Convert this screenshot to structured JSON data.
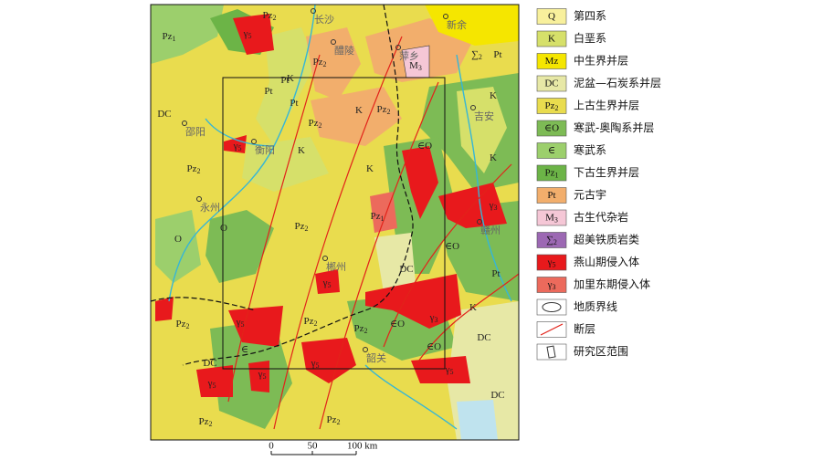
{
  "legend": [
    {
      "symbol": "Q",
      "label": "第四系",
      "color": "#f8f09c"
    },
    {
      "symbol": "K",
      "label": "白垩系",
      "color": "#d6e06a"
    },
    {
      "symbol": "Mz",
      "label": "中生界并层",
      "color": "#f5e600"
    },
    {
      "symbol": "DC",
      "label": "泥盆—石炭系并层",
      "color": "#e7e8a6"
    },
    {
      "symbol": "Pz",
      "sub": "2",
      "label": "上古生界并层",
      "color": "#e9dc4e"
    },
    {
      "symbol": "∈O",
      "label": "寒武-奥陶系并层",
      "color": "#7dbb55"
    },
    {
      "symbol": "∈",
      "label": "寒武系",
      "color": "#9ccf6c"
    },
    {
      "symbol": "Pz",
      "sub": "1",
      "label": "下古生界并层",
      "color": "#6cb447"
    },
    {
      "symbol": "Pt",
      "label": "元古宇",
      "color": "#f2ae6c"
    },
    {
      "symbol": "M",
      "sub": "3",
      "label": "古生代杂岩",
      "color": "#f5c7d6"
    },
    {
      "symbol": "∑",
      "sub": "2",
      "label": "超美铁质岩类",
      "color": "#9c68b3"
    },
    {
      "symbol": "γ",
      "sub": "5",
      "label": "燕山期侵入体",
      "color": "#e8191c"
    },
    {
      "symbol": "γ",
      "sub": "3",
      "label": "加里东期侵入体",
      "color": "#ec6a5c"
    },
    {
      "label": "地质界线"
    },
    {
      "label": "断层"
    },
    {
      "label": "研究区范围"
    }
  ],
  "cities": [
    "长沙",
    "醴陵",
    "萍乡",
    "新余",
    "邵阳",
    "衡阳",
    "吉安",
    "永州",
    "郴州",
    "赣州",
    "韶关"
  ],
  "units": [
    {
      "text": "Pz",
      "sub": "1"
    },
    {
      "text": "Pz",
      "sub": "2"
    },
    {
      "text": "Pt"
    },
    {
      "text": "K"
    },
    {
      "text": "Pz",
      "sub": "2"
    },
    {
      "text": "Pt"
    },
    {
      "text": "Pt"
    },
    {
      "text": "Pz",
      "sub": "2"
    },
    {
      "text": "K"
    },
    {
      "text": "Pz",
      "sub": "2"
    },
    {
      "text": "M",
      "sub": "3"
    },
    {
      "text": "∑",
      "sub": "2"
    },
    {
      "text": "Pt"
    },
    {
      "text": "K"
    },
    {
      "text": "K"
    },
    {
      "text": "Pz",
      "sub": "2"
    },
    {
      "text": "K"
    },
    {
      "text": "K"
    },
    {
      "text": "∈O"
    },
    {
      "text": "∈O"
    },
    {
      "text": "Pz",
      "sub": "2"
    },
    {
      "text": "DC"
    },
    {
      "text": "∈O"
    },
    {
      "text": "Pz",
      "sub": "2"
    },
    {
      "text": "Pz",
      "sub": "2"
    },
    {
      "text": "DC"
    },
    {
      "text": "DC"
    },
    {
      "text": "DC"
    },
    {
      "text": "∈"
    },
    {
      "text": "Pz",
      "sub": "2"
    },
    {
      "text": "∈O"
    },
    {
      "text": "K"
    },
    {
      "text": "Pt"
    },
    {
      "text": "Pz",
      "sub": "2"
    },
    {
      "text": "Pz",
      "sub": "2"
    },
    {
      "text": "O"
    },
    {
      "text": "O"
    },
    {
      "text": "γ",
      "sub": "5"
    },
    {
      "text": "γ",
      "sub": "5"
    },
    {
      "text": "γ",
      "sub": "5"
    },
    {
      "text": "γ",
      "sub": "5"
    },
    {
      "text": "γ",
      "sub": "5"
    },
    {
      "text": "γ",
      "sub": "5"
    },
    {
      "text": "γ",
      "sub": "5"
    },
    {
      "text": "γ",
      "sub": "5"
    },
    {
      "text": "γ",
      "sub": "3"
    },
    {
      "text": "γ",
      "sub": "3"
    },
    {
      "text": "Pz",
      "sub": "1"
    },
    {
      "text": "DC"
    }
  ],
  "scale": [
    "0",
    "50",
    "100 km"
  ]
}
